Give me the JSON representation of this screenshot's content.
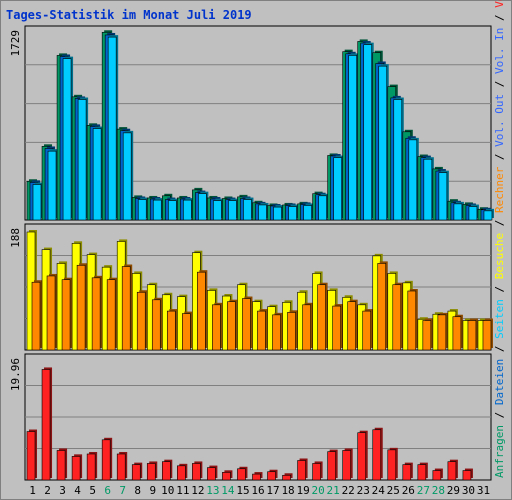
{
  "title": "Tages-Statistik im Monat Juli 2019",
  "colors": {
    "background": "#c0c0c0",
    "frame": "#808080",
    "grid": "#808080",
    "anfragen": "#009966",
    "dateien": "#0066cc",
    "seiten": "#00ccff",
    "besuche": "#ffff00",
    "rechner": "#ff8800",
    "vol_out": "#3366ff",
    "vol_in": "#ff2222",
    "weekend_label": "#009966",
    "weekday_label": "#000000"
  },
  "side_legend": {
    "top": [
      {
        "text": "Anfragen",
        "color": "#009966"
      },
      {
        "text": " / ",
        "color": "#000000"
      },
      {
        "text": "Dateien",
        "color": "#0066cc"
      },
      {
        "text": " / ",
        "color": "#000000"
      },
      {
        "text": "Seiten",
        "color": "#00ccff"
      },
      {
        "text": " / ",
        "color": "#000000"
      },
      {
        "text": "Besuche",
        "color": "#ffff00"
      },
      {
        "text": " / ",
        "color": "#000000"
      },
      {
        "text": "Rechner",
        "color": "#ff8800"
      },
      {
        "text": " / ",
        "color": "#000000"
      },
      {
        "text": "Vol. Out",
        "color": "#3366ff"
      },
      {
        "text": " / ",
        "color": "#000000"
      },
      {
        "text": "Vol. In",
        "color": "#3366ff"
      },
      {
        "text": " / ",
        "color": "#000000"
      },
      {
        "text": "Volumen",
        "color": "#ff2222"
      }
    ]
  },
  "chart_data": [
    {
      "type": "bar",
      "panel": "top",
      "ymax_label": "1729",
      "ylim": [
        0,
        1729
      ],
      "x": [
        "1",
        "2",
        "3",
        "4",
        "5",
        "6",
        "7",
        "8",
        "9",
        "10",
        "11",
        "12",
        "13",
        "14",
        "15",
        "16",
        "17",
        "18",
        "19",
        "20",
        "21",
        "22",
        "23",
        "24",
        "25",
        "26",
        "27",
        "28",
        "29",
        "30",
        "31"
      ],
      "weekend": [
        6,
        7,
        13,
        14,
        20,
        21,
        27,
        28
      ],
      "series": [
        {
          "name": "Anfragen",
          "values": [
            360,
            685,
            1530,
            1145,
            880,
            1745,
            845,
            210,
            205,
            225,
            205,
            280,
            205,
            200,
            215,
            160,
            135,
            140,
            150,
            245,
            600,
            1565,
            1660,
            1555,
            1240,
            820,
            590,
            475,
            175,
            145,
            100
          ]
        },
        {
          "name": "Dateien",
          "values": [
            350,
            665,
            1520,
            1130,
            870,
            1720,
            830,
            200,
            195,
            190,
            195,
            255,
            195,
            190,
            200,
            150,
            130,
            135,
            145,
            235,
            595,
            1545,
            1645,
            1455,
            1135,
            760,
            580,
            455,
            160,
            135,
            95
          ]
        },
        {
          "name": "Seiten",
          "values": [
            330,
            640,
            1500,
            1120,
            850,
            1700,
            810,
            190,
            185,
            180,
            185,
            245,
            180,
            180,
            190,
            140,
            120,
            125,
            135,
            225,
            580,
            1530,
            1630,
            1430,
            1120,
            745,
            565,
            440,
            150,
            125,
            85
          ]
        }
      ]
    },
    {
      "type": "bar",
      "panel": "middle",
      "ymax_label": "188",
      "ylim": [
        0,
        188
      ],
      "x": [
        "1",
        "2",
        "3",
        "4",
        "5",
        "6",
        "7",
        "8",
        "9",
        "10",
        "11",
        "12",
        "13",
        "14",
        "15",
        "16",
        "17",
        "18",
        "19",
        "20",
        "21",
        "22",
        "23",
        "24",
        "25",
        "26",
        "27",
        "28",
        "29",
        "30",
        "31"
      ],
      "series": [
        {
          "name": "Besuche",
          "values": [
            188,
            160,
            138,
            170,
            152,
            132,
            173,
            122,
            104,
            88,
            85,
            155,
            95,
            86,
            104,
            77,
            69,
            76,
            92,
            122,
            95,
            84,
            72,
            150,
            122,
            107,
            49,
            57,
            62,
            47,
            47
          ]
        },
        {
          "name": "Rechner",
          "values": [
            108,
            118,
            112,
            135,
            115,
            112,
            133,
            92,
            80,
            62,
            58,
            124,
            72,
            77,
            82,
            62,
            56,
            60,
            72,
            104,
            70,
            77,
            62,
            138,
            104,
            94,
            47,
            56,
            53,
            47,
            47
          ]
        }
      ]
    },
    {
      "type": "bar",
      "panel": "bottom",
      "ymax_label": "19.96",
      "ylim": [
        0,
        19.96
      ],
      "x": [
        "1",
        "2",
        "3",
        "4",
        "5",
        "6",
        "7",
        "8",
        "9",
        "10",
        "11",
        "12",
        "13",
        "14",
        "15",
        "16",
        "17",
        "18",
        "19",
        "20",
        "21",
        "22",
        "23",
        "24",
        "25",
        "26",
        "27",
        "28",
        "29",
        "30",
        "31"
      ],
      "series": [
        {
          "name": "Volumen",
          "values": [
            8.2,
            18.7,
            5.0,
            4.0,
            4.4,
            6.8,
            4.4,
            2.6,
            2.8,
            3.1,
            2.4,
            2.8,
            2.1,
            1.3,
            1.9,
            1.0,
            1.4,
            0.8,
            3.3,
            2.8,
            4.8,
            5.0,
            8.0,
            8.5,
            5.1,
            2.6,
            2.6,
            1.6,
            3.1,
            1.6,
            0.0
          ]
        }
      ]
    }
  ]
}
